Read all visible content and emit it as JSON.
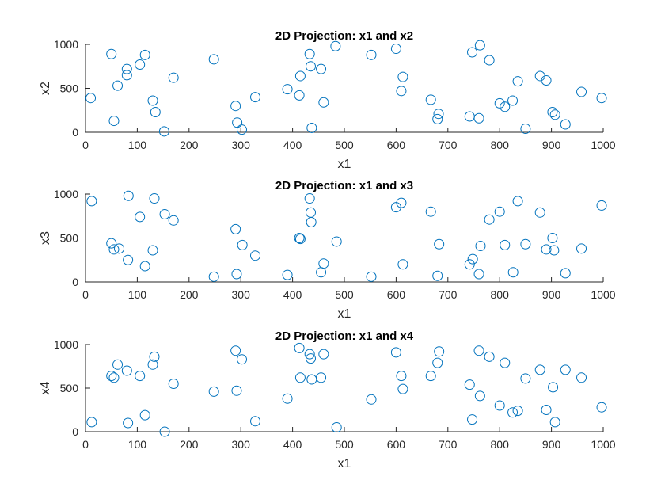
{
  "colors": {
    "marker": "#0072BD",
    "axis": "#262626",
    "background": "#ffffff"
  },
  "chart_data": [
    {
      "type": "scatter",
      "title": "2D Projection: x1 and x2",
      "xlabel": "x1",
      "ylabel": "x2",
      "xlim": [
        0,
        1000
      ],
      "ylim": [
        0,
        1000
      ],
      "xticks": [
        "0",
        "100",
        "200",
        "300",
        "400",
        "500",
        "600",
        "700",
        "800",
        "900",
        "1000"
      ],
      "yticks": [
        "0",
        "500",
        "1000"
      ],
      "grid": false,
      "marker": "circle",
      "x": [
        10,
        50,
        55,
        62,
        80,
        80,
        105,
        115,
        130,
        135,
        152,
        170,
        248,
        290,
        293,
        302,
        328,
        390,
        413,
        415,
        433,
        435,
        437,
        455,
        460,
        483,
        552,
        600,
        610,
        613,
        667,
        680,
        682,
        742,
        747,
        760,
        762,
        780,
        800,
        810,
        825,
        835,
        850,
        878,
        890,
        902,
        907,
        927,
        958,
        997
      ],
      "y": [
        390,
        890,
        130,
        530,
        650,
        720,
        770,
        880,
        360,
        230,
        10,
        620,
        830,
        300,
        110,
        30,
        400,
        490,
        420,
        640,
        890,
        750,
        50,
        720,
        340,
        980,
        880,
        950,
        470,
        630,
        370,
        150,
        210,
        180,
        910,
        160,
        990,
        820,
        330,
        290,
        360,
        580,
        40,
        640,
        590,
        230,
        200,
        90,
        460,
        390
      ]
    },
    {
      "type": "scatter",
      "title": "2D Projection: x1 and x3",
      "xlabel": "x1",
      "ylabel": "x3",
      "xlim": [
        0,
        1000
      ],
      "ylim": [
        0,
        1000
      ],
      "xticks": [
        "0",
        "100",
        "200",
        "300",
        "400",
        "500",
        "600",
        "700",
        "800",
        "900",
        "1000"
      ],
      "yticks": [
        "0",
        "500",
        "1000"
      ],
      "grid": false,
      "marker": "circle",
      "x": [
        12,
        50,
        55,
        65,
        82,
        83,
        105,
        115,
        130,
        133,
        153,
        170,
        248,
        290,
        292,
        303,
        328,
        390,
        413,
        415,
        433,
        435,
        436,
        455,
        460,
        485,
        552,
        600,
        610,
        613,
        667,
        680,
        683,
        742,
        748,
        760,
        763,
        780,
        800,
        810,
        826,
        835,
        850,
        878,
        890,
        902,
        905,
        927,
        958,
        997
      ],
      "y": [
        920,
        440,
        370,
        380,
        250,
        980,
        740,
        180,
        360,
        950,
        770,
        700,
        60,
        600,
        90,
        420,
        300,
        80,
        500,
        490,
        950,
        790,
        680,
        110,
        210,
        460,
        60,
        850,
        900,
        200,
        800,
        70,
        430,
        200,
        260,
        90,
        410,
        710,
        800,
        420,
        110,
        920,
        430,
        790,
        370,
        500,
        360,
        100,
        380,
        870
      ]
    },
    {
      "type": "scatter",
      "title": "2D Projection: x1 and x4",
      "xlabel": "x1",
      "ylabel": "x4",
      "xlim": [
        0,
        1000
      ],
      "ylim": [
        0,
        1000
      ],
      "xticks": [
        "0",
        "100",
        "200",
        "300",
        "400",
        "500",
        "600",
        "700",
        "800",
        "900",
        "1000"
      ],
      "yticks": [
        "0",
        "500",
        "1000"
      ],
      "grid": false,
      "marker": "circle",
      "x": [
        12,
        50,
        55,
        62,
        80,
        82,
        105,
        115,
        130,
        133,
        153,
        170,
        248,
        290,
        292,
        302,
        328,
        390,
        413,
        415,
        433,
        435,
        437,
        455,
        460,
        485,
        552,
        600,
        610,
        613,
        667,
        680,
        683,
        742,
        747,
        760,
        762,
        780,
        800,
        810,
        825,
        835,
        850,
        878,
        890,
        903,
        907,
        927,
        958,
        997
      ],
      "y": [
        110,
        640,
        620,
        770,
        700,
        100,
        640,
        190,
        770,
        860,
        0,
        550,
        460,
        930,
        470,
        830,
        120,
        380,
        960,
        620,
        890,
        840,
        600,
        620,
        890,
        50,
        370,
        910,
        640,
        490,
        640,
        790,
        920,
        540,
        140,
        930,
        410,
        860,
        300,
        790,
        220,
        240,
        610,
        710,
        250,
        510,
        110,
        710,
        620,
        280
      ]
    }
  ]
}
